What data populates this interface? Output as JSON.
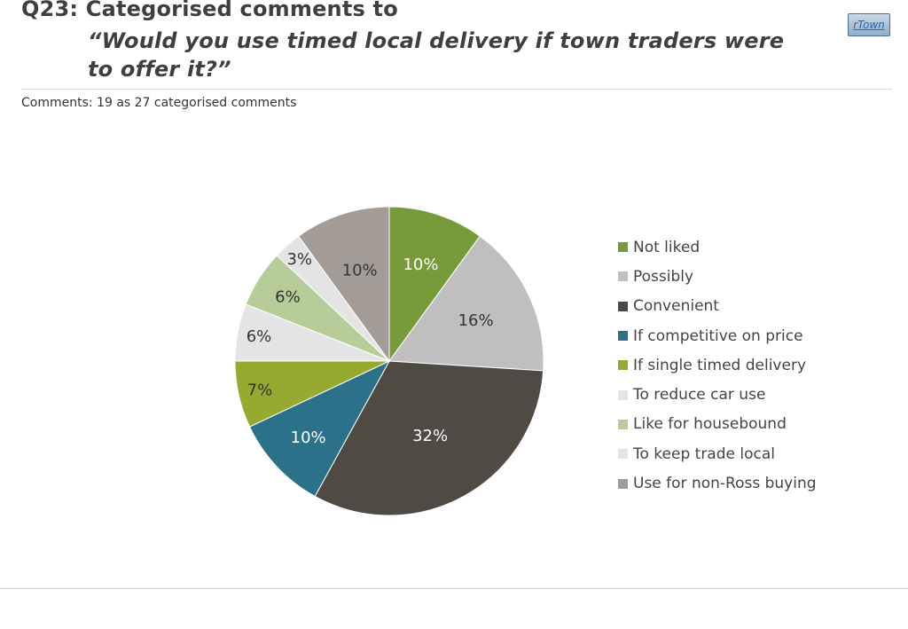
{
  "header": {
    "title_line1": "Q23: Categorised comments to",
    "title_line2": "“Would you use timed local delivery if town traders were to offer it?”",
    "logo_r": "r",
    "logo_rest": "Town",
    "subtitle": "Comments: 19 as 27 categorised comments"
  },
  "chart_data": {
    "type": "pie",
    "title": "",
    "categories": [
      "Not liked",
      "Possibly",
      "Convenient",
      "If competitive on price",
      "If single timed delivery",
      "To reduce car use",
      "Like for housebound",
      "To keep trade local",
      "Use for non-Ross buying"
    ],
    "values": [
      10,
      16,
      32,
      10,
      7,
      6,
      6,
      3,
      10
    ],
    "labels": [
      "10%",
      "16%",
      "32%",
      "10%",
      "7%",
      "6%",
      "6%",
      "3%",
      "10%"
    ],
    "colors": [
      "#779a3a",
      "#bfbfbf",
      "#4f4a44",
      "#2b7189",
      "#95aa2f",
      "#e4e4e4",
      "#b6cc99",
      "#e4e4e4",
      "#a29b96"
    ],
    "label_colors": [
      "#ffffff",
      "#333333",
      "#ffffff",
      "#ffffff",
      "#333333",
      "#333333",
      "#333333",
      "#333333",
      "#333333"
    ],
    "start_angle_deg": 0,
    "direction": "clockwise",
    "legend_position": "right"
  }
}
